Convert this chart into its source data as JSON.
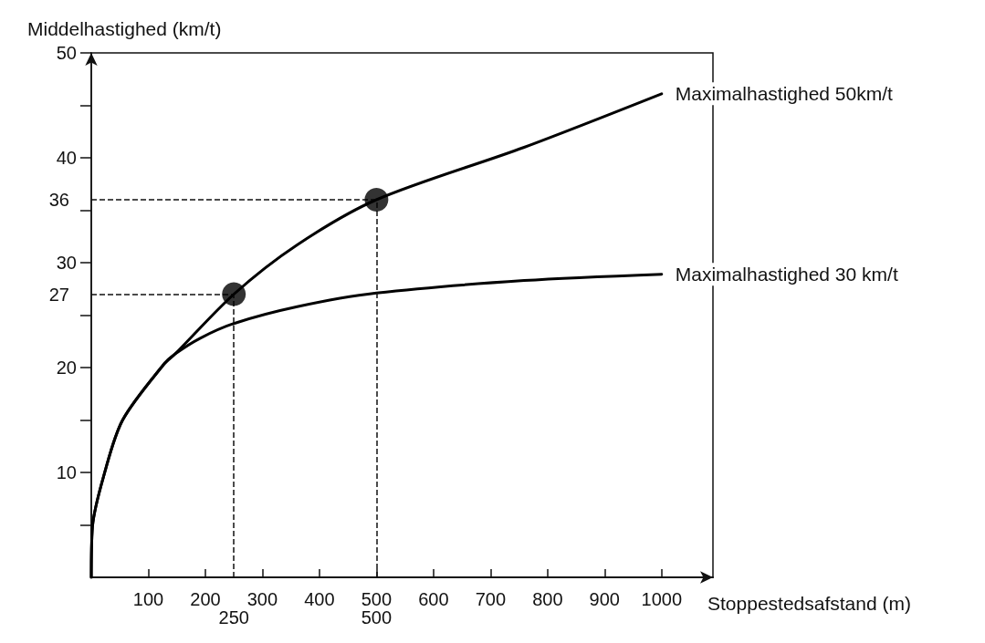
{
  "chart_data": {
    "type": "line",
    "xlabel": "Stoppestedsafstand (m)",
    "ylabel": "Middelhastighed (km/t)",
    "xlim": [
      0,
      1090
    ],
    "ylim": [
      0,
      50
    ],
    "xticks": [
      100,
      200,
      300,
      400,
      500,
      600,
      700,
      800,
      900,
      1000
    ],
    "yticks": [
      {
        "value": 5,
        "label": null
      },
      10,
      {
        "value": 15,
        "label": null
      },
      20,
      {
        "value": 25,
        "label": null
      },
      30,
      {
        "value": 35,
        "label": null
      },
      40,
      {
        "value": 45,
        "label": null
      },
      50
    ],
    "series": [
      {
        "name": "Maximalhastighed 50km/t",
        "color": "#000000",
        "x": [
          0,
          2,
          23,
          55,
          127,
          147,
          250,
          361,
          500,
          759,
          1000
        ],
        "values": [
          0,
          4.8,
          9.9,
          15,
          20.3,
          21.3,
          27,
          31.7,
          36,
          41,
          46.1
        ]
      },
      {
        "name": "Maximalhastighed 30 km/t",
        "color": "#000000",
        "x": [
          0,
          2,
          23,
          55,
          127,
          147,
          191,
          250,
          361,
          500,
          759,
          1000
        ],
        "values": [
          0,
          4.8,
          9.9,
          15,
          20.3,
          21.3,
          22.8,
          24.2,
          25.8,
          27.1,
          28.3,
          28.9
        ]
      },
      {
        "type": "scatter",
        "color": "#000000",
        "marker": "circle",
        "x": [
          250,
          500
        ],
        "values": [
          27,
          36
        ]
      }
    ],
    "ref_lines": [
      {
        "axis": "x",
        "value": 250,
        "label": "250",
        "line_style": "dashed"
      },
      {
        "axis": "x",
        "value": 500,
        "label": "500",
        "line_style": "dashed"
      },
      {
        "axis": "y",
        "value": 27,
        "label": "27",
        "line_style": "dashed"
      },
      {
        "axis": "y",
        "value": 36,
        "label": "36",
        "line_style": "dashed"
      }
    ]
  }
}
